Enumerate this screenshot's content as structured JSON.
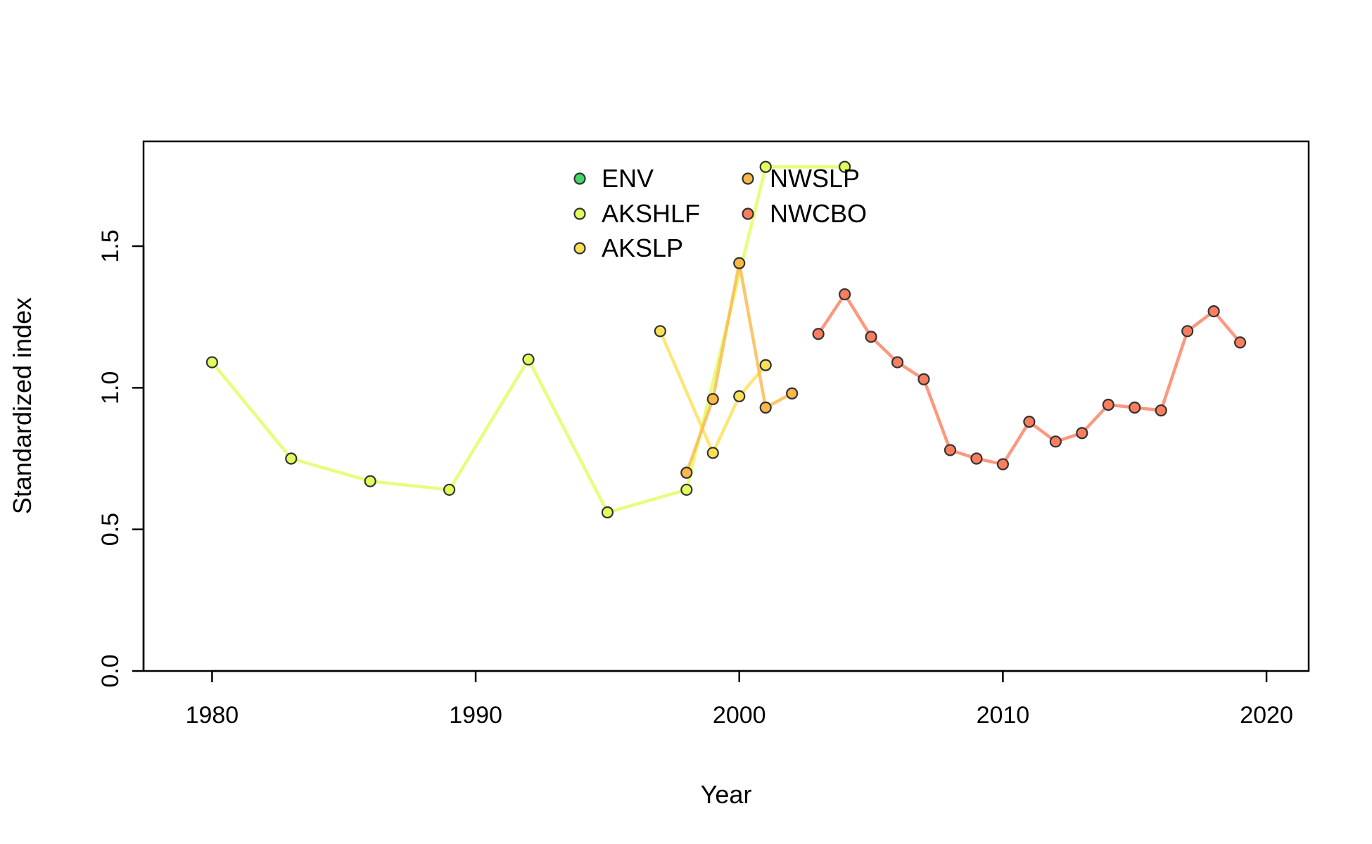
{
  "chart_data": {
    "type": "line",
    "xlabel": "Year",
    "ylabel": "Standardized index",
    "xlim": [
      1977.4,
      2021.6
    ],
    "ylim": [
      0,
      1.87
    ],
    "xticks": [
      1980,
      1990,
      2000,
      2010,
      2020
    ],
    "yticks": [
      0.0,
      0.5,
      1.0,
      1.5
    ],
    "ytick_labels": [
      "0.0",
      "0.5",
      "1.0",
      "1.5"
    ],
    "grid": false,
    "legend_position": "top-center",
    "series": [
      {
        "name": "ENV",
        "color": "#3fd96a",
        "x": [],
        "y": []
      },
      {
        "name": "AKSHLF",
        "color": "#dfff5a",
        "x": [
          1980,
          1983,
          1986,
          1989,
          1992,
          1995,
          1998,
          2001,
          2004
        ],
        "y": [
          1.09,
          0.75,
          0.67,
          0.64,
          1.1,
          0.56,
          0.64,
          1.78,
          1.78
        ]
      },
      {
        "name": "AKSLP",
        "color": "#fce054",
        "x": [
          1997,
          1999,
          2000,
          2001
        ],
        "y": [
          1.2,
          0.77,
          0.97,
          1.08
        ]
      },
      {
        "name": "NWSLP",
        "color": "#fbb848",
        "x": [
          1998,
          1999,
          2000,
          2001,
          2002
        ],
        "y": [
          0.7,
          0.96,
          1.44,
          0.93,
          0.98
        ]
      },
      {
        "name": "NWCBO",
        "color": "#fa7e5e",
        "x": [
          2003,
          2004,
          2005,
          2006,
          2007,
          2008,
          2009,
          2010,
          2011,
          2012,
          2013,
          2014,
          2015,
          2016,
          2017,
          2018,
          2019
        ],
        "y": [
          1.19,
          1.33,
          1.18,
          1.09,
          1.03,
          0.78,
          0.75,
          0.73,
          0.88,
          0.81,
          0.84,
          0.94,
          0.93,
          0.92,
          1.2,
          1.27,
          1.16
        ]
      }
    ]
  }
}
